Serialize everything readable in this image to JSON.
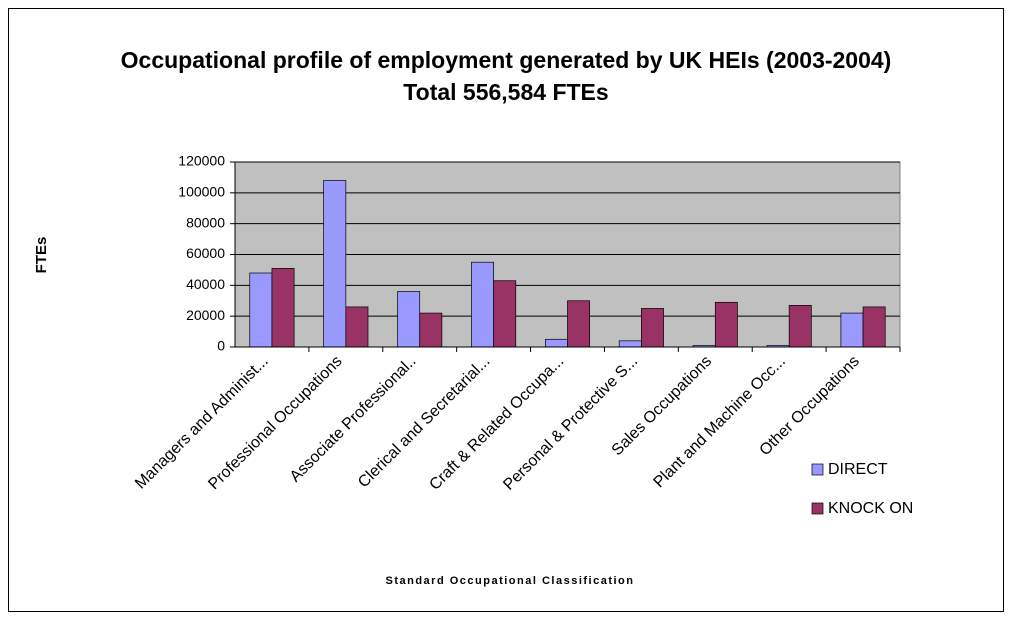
{
  "chart_data": {
    "type": "bar",
    "title": "Occupational profile of employment generated by UK HEIs (2003-2004) Total 556,584 FTEs",
    "x_label": "Standard Occupational Classification",
    "y_label": "FTEs",
    "categories": [
      "Managers and Administ...",
      "Professional Occupations",
      "Associate Professional..",
      "Clerical and Secretarial...",
      "Craft & Related Occupa...",
      "Personal & Protective S...",
      "Sales Occupations",
      "Plant and Machine Occ...",
      "Other Occupations"
    ],
    "series": [
      {
        "name": "DIRECT",
        "color": "#9999ff",
        "values": [
          48000,
          108000,
          36000,
          55000,
          5000,
          4000,
          1000,
          1000,
          22000
        ]
      },
      {
        "name": "KNOCK ON",
        "color": "#993366",
        "values": [
          51000,
          26000,
          22000,
          43000,
          30000,
          25000,
          29000,
          27000,
          26000
        ]
      }
    ],
    "ylim": [
      0,
      120000
    ],
    "yticks": [
      0,
      20000,
      40000,
      60000,
      80000,
      100000,
      120000
    ],
    "grid": true,
    "legend": "right"
  }
}
